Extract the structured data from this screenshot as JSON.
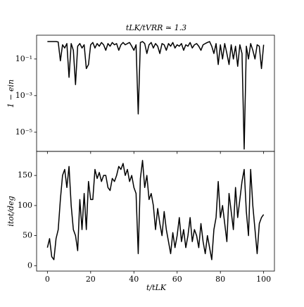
{
  "chart_data": [
    {
      "type": "line",
      "title": "tLK/tVRR ≃ 1.3",
      "ylabel": "1 − ein",
      "ylog": true,
      "color": "#000000",
      "x": [
        0,
        1,
        2,
        3,
        4,
        5,
        6,
        7,
        8,
        9,
        10,
        11,
        12,
        13,
        14,
        15,
        16,
        17,
        18,
        19,
        20,
        21,
        22,
        23,
        24,
        25,
        26,
        27,
        28,
        29,
        30,
        31,
        32,
        33,
        34,
        35,
        36,
        37,
        38,
        39,
        40,
        41,
        42,
        43,
        44,
        45,
        46,
        47,
        48,
        49,
        50,
        51,
        52,
        53,
        54,
        55,
        56,
        57,
        58,
        59,
        60,
        61,
        62,
        63,
        64,
        65,
        66,
        67,
        68,
        69,
        70,
        71,
        72,
        73,
        74,
        75,
        76,
        77,
        78,
        79,
        80,
        81,
        82,
        83,
        84,
        85,
        86,
        87,
        88,
        89,
        90,
        91,
        92,
        93,
        94,
        95,
        96,
        97,
        98,
        99,
        100
      ],
      "series": [
        {
          "values": [
            0.9,
            0.9,
            0.9,
            0.9,
            0.9,
            0.85,
            0.08,
            0.6,
            0.4,
            0.7,
            0.01,
            0.7,
            0.3,
            0.004,
            0.5,
            0.7,
            0.4,
            0.6,
            0.03,
            0.05,
            0.6,
            0.8,
            0.4,
            0.7,
            0.5,
            0.8,
            0.6,
            0.3,
            0.7,
            0.5,
            0.8,
            0.6,
            0.7,
            0.3,
            0.6,
            0.8,
            0.6,
            0.7,
            0.8,
            0.5,
            0.3,
            0.6,
            0.0001,
            0.8,
            0.9,
            0.7,
            0.2,
            0.6,
            0.8,
            0.4,
            0.7,
            0.5,
            0.2,
            0.7,
            0.6,
            0.3,
            0.7,
            0.5,
            0.8,
            0.4,
            0.6,
            0.5,
            0.7,
            0.3,
            0.6,
            0.5,
            0.8,
            0.4,
            0.6,
            0.7,
            0.5,
            0.3,
            0.6,
            0.7,
            0.8,
            0.9,
            0.5,
            0.2,
            0.7,
            0.05,
            0.6,
            0.1,
            0.7,
            0.2,
            0.05,
            0.6,
            0.1,
            0.5,
            0.04,
            0.6,
            0.2,
            1.2e-06,
            0.5,
            0.1,
            0.7,
            0.3,
            0.1,
            0.6,
            0.5,
            0.03,
            0.6
          ]
        }
      ],
      "xlim": [
        -5,
        105
      ],
      "xticks": [
        0,
        20,
        40,
        60,
        80,
        100
      ],
      "ylim": [
        9e-07,
        2
      ],
      "yticks": [
        {
          "value": 0.1,
          "label": "10⁻¹"
        },
        {
          "value": 0.001,
          "label": "10⁻³"
        },
        {
          "value": 1e-05,
          "label": "10⁻⁵"
        }
      ]
    },
    {
      "type": "line",
      "xlabel": "t/tLK",
      "ylabel": "itot/deg",
      "color": "#000000",
      "x": [
        0,
        1,
        2,
        3,
        4,
        5,
        6,
        7,
        8,
        9,
        10,
        11,
        12,
        13,
        14,
        15,
        16,
        17,
        18,
        19,
        20,
        21,
        22,
        23,
        24,
        25,
        26,
        27,
        28,
        29,
        30,
        31,
        32,
        33,
        34,
        35,
        36,
        37,
        38,
        39,
        40,
        41,
        42,
        43,
        44,
        45,
        46,
        47,
        48,
        49,
        50,
        51,
        52,
        53,
        54,
        55,
        56,
        57,
        58,
        59,
        60,
        61,
        62,
        63,
        64,
        65,
        66,
        67,
        68,
        69,
        70,
        71,
        72,
        73,
        74,
        75,
        76,
        77,
        78,
        79,
        80,
        81,
        82,
        83,
        84,
        85,
        86,
        87,
        88,
        89,
        90,
        91,
        92,
        93,
        94,
        95,
        96,
        97,
        98,
        99,
        100
      ],
      "series": [
        {
          "values": [
            30,
            45,
            15,
            10,
            45,
            60,
            110,
            150,
            160,
            130,
            165,
            100,
            60,
            50,
            25,
            110,
            60,
            120,
            60,
            140,
            110,
            110,
            160,
            145,
            155,
            140,
            150,
            150,
            130,
            125,
            145,
            140,
            150,
            165,
            160,
            170,
            150,
            160,
            140,
            150,
            130,
            120,
            20,
            145,
            175,
            130,
            150,
            110,
            120,
            100,
            60,
            95,
            70,
            50,
            90,
            60,
            40,
            20,
            55,
            30,
            50,
            80,
            40,
            60,
            30,
            50,
            80,
            40,
            60,
            50,
            30,
            70,
            40,
            20,
            50,
            30,
            10,
            60,
            80,
            140,
            80,
            100,
            70,
            40,
            120,
            90,
            60,
            130,
            80,
            110,
            140,
            160,
            90,
            50,
            160,
            100,
            60,
            20,
            70,
            80,
            85
          ]
        }
      ],
      "xlim": [
        -5,
        105
      ],
      "xticks": [
        0,
        20,
        40,
        60,
        80,
        100
      ],
      "ylim": [
        -9,
        190
      ],
      "yticks": [
        0,
        50,
        100,
        150
      ]
    }
  ]
}
